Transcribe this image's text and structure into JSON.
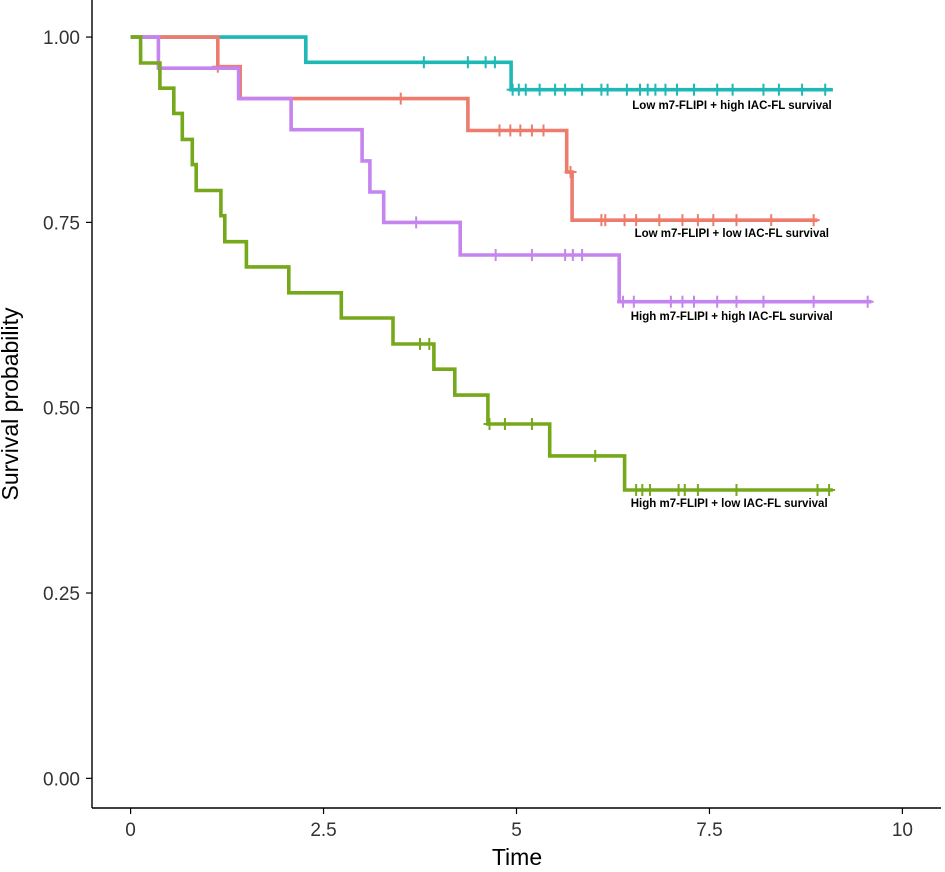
{
  "chart_data": {
    "type": "line",
    "subtype": "kaplan-meier-step",
    "title": "",
    "xlabel": "Time",
    "ylabel": "Survival probability",
    "xlim": [
      -0.5,
      10.5
    ],
    "ylim": [
      -0.04,
      1.05
    ],
    "x_ticks": [
      0,
      2.5,
      5,
      7.5,
      10
    ],
    "x_tick_labels": [
      "0",
      "2.5",
      "5",
      "7.5",
      "10"
    ],
    "y_ticks": [
      0,
      0.25,
      0.5,
      0.75,
      1.0
    ],
    "y_tick_labels": [
      "0.00",
      "0.25",
      "0.50",
      "0.75",
      "1.00"
    ],
    "grid": false,
    "series": [
      {
        "name": "Low m7-FLIPI + high IAC-FL survival",
        "color": "#1fb8b6",
        "steps": [
          [
            0,
            1.0
          ],
          [
            2.27,
            0.966
          ],
          [
            4.93,
            0.929
          ]
        ],
        "end_x": 9.1,
        "censor_x": [
          3.8,
          4.37,
          4.6,
          4.72,
          4.95,
          5.03,
          5.12,
          5.3,
          5.5,
          5.63,
          5.85,
          6.1,
          6.18,
          6.43,
          6.6,
          6.7,
          6.8,
          6.93,
          7.08,
          7.3,
          7.6,
          7.8,
          8.2,
          8.4,
          8.7,
          9.0
        ]
      },
      {
        "name": "Low m7-FLIPI + low IAC-FL survival",
        "color": "#ee7b6b",
        "steps": [
          [
            0,
            1.0
          ],
          [
            1.13,
            0.96
          ],
          [
            1.42,
            0.917
          ],
          [
            4.37,
            0.874
          ],
          [
            5.65,
            0.818
          ],
          [
            5.72,
            0.753
          ]
        ],
        "end_x": 8.9,
        "censor_x": [
          1.13,
          3.5,
          4.78,
          4.92,
          5.05,
          5.2,
          5.35,
          5.7,
          6.1,
          6.15,
          6.4,
          6.55,
          6.85,
          7.15,
          7.35,
          7.55,
          7.85,
          8.3,
          8.85
        ]
      },
      {
        "name": "High m7-FLIPI + high IAC-FL survival",
        "color": "#c584ee",
        "steps": [
          [
            0,
            1.0
          ],
          [
            0.36,
            0.958
          ],
          [
            1.4,
            0.917
          ],
          [
            2.08,
            0.875
          ],
          [
            3.0,
            0.833
          ],
          [
            3.1,
            0.791
          ],
          [
            3.28,
            0.75
          ],
          [
            4.27,
            0.706
          ],
          [
            6.33,
            0.643
          ]
        ],
        "end_x": 9.6,
        "censor_x": [
          3.7,
          4.73,
          5.2,
          5.63,
          5.73,
          5.85,
          6.38,
          6.52,
          7.0,
          7.15,
          7.3,
          7.6,
          7.85,
          8.2,
          8.85,
          9.55
        ]
      },
      {
        "name": "High m7-FLIPI + low IAC-FL survival",
        "color": "#76a81b",
        "steps": [
          [
            0,
            1.0
          ],
          [
            0.13,
            0.965
          ],
          [
            0.38,
            0.931
          ],
          [
            0.56,
            0.897
          ],
          [
            0.67,
            0.862
          ],
          [
            0.8,
            0.828
          ],
          [
            0.85,
            0.793
          ],
          [
            1.17,
            0.759
          ],
          [
            1.22,
            0.724
          ],
          [
            1.5,
            0.69
          ],
          [
            2.05,
            0.655
          ],
          [
            2.73,
            0.621
          ],
          [
            3.4,
            0.586
          ],
          [
            3.93,
            0.552
          ],
          [
            4.2,
            0.517
          ],
          [
            4.63,
            0.478
          ],
          [
            5.43,
            0.435
          ],
          [
            6.4,
            0.389
          ]
        ],
        "end_x": 9.1,
        "censor_x": [
          3.75,
          3.87,
          4.65,
          4.85,
          5.2,
          6.02,
          6.55,
          6.63,
          6.73,
          7.1,
          7.18,
          7.35,
          7.85,
          8.9,
          9.05
        ]
      }
    ],
    "annotations": [
      {
        "text": "Low m7-FLIPI + high IAC-FL survival",
        "x": 6.5,
        "y": 0.903
      },
      {
        "text": "Low m7-FLIPI + low IAC-FL survival",
        "x": 6.53,
        "y": 0.73
      },
      {
        "text": "High m7-FLIPI + high IAC-FL survival",
        "x": 6.48,
        "y": 0.618
      },
      {
        "text": "High m7-FLIPI + low IAC-FL survival",
        "x": 6.48,
        "y": 0.366
      }
    ]
  }
}
